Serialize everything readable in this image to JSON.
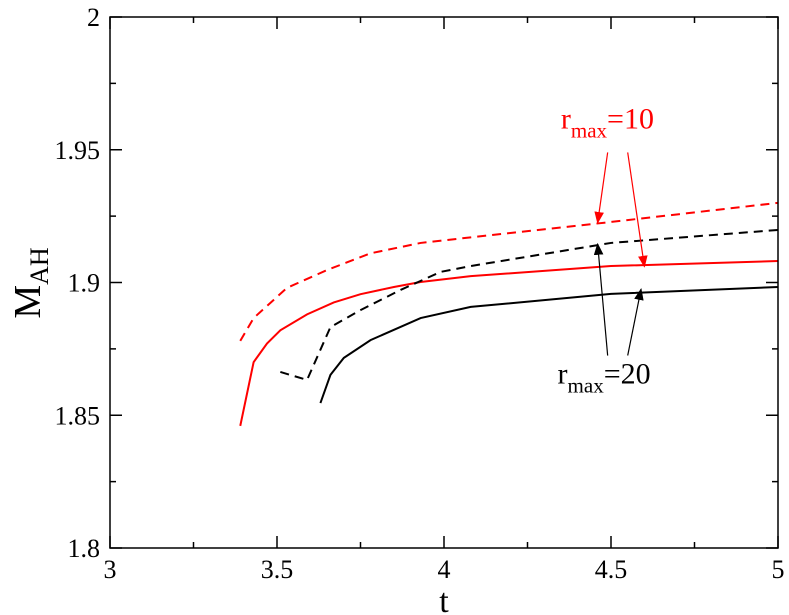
{
  "chart_data": {
    "type": "line",
    "title": "",
    "xlabel": "t",
    "ylabel_main": "M",
    "ylabel_sub": "AH",
    "xlim": [
      3,
      5
    ],
    "ylim": [
      1.8,
      2.0
    ],
    "xticks": [
      "3",
      "3.5",
      "4",
      "4.5",
      "5"
    ],
    "yticks": [
      "1.8",
      "1.85",
      "1.9",
      "1.95",
      "2"
    ],
    "xtick_values": [
      3,
      3.5,
      4,
      4.5,
      5
    ],
    "ytick_values": [
      1.8,
      1.85,
      1.9,
      1.95,
      2.0
    ],
    "grid": false,
    "series": [
      {
        "name": "r_max=10 solid",
        "color": "#ff0000",
        "dash": "solid",
        "x": [
          3.39,
          3.43,
          3.47,
          3.51,
          3.59,
          3.67,
          3.75,
          3.85,
          3.93,
          4.08,
          4.5,
          5.0
        ],
        "y": [
          1.846,
          1.87,
          1.877,
          1.882,
          1.888,
          1.8925,
          1.8956,
          1.8983,
          1.9002,
          1.9024,
          1.9062,
          1.9081
        ]
      },
      {
        "name": "r_max=10 dashed",
        "color": "#ff0000",
        "dash": "dashed",
        "x": [
          3.39,
          3.43,
          3.53,
          3.65,
          3.78,
          3.93,
          4.08,
          4.5,
          5.0
        ],
        "y": [
          1.878,
          1.8866,
          1.898,
          1.9047,
          1.911,
          1.9149,
          1.917,
          1.9228,
          1.93
        ]
      },
      {
        "name": "r_max=20 dashed",
        "color": "#000000",
        "dash": "dashed",
        "x": [
          3.51,
          3.59,
          3.66,
          3.75,
          3.87,
          3.99,
          4.08,
          4.5,
          5.0
        ],
        "y": [
          1.8663,
          1.8633,
          1.8832,
          1.8896,
          1.8972,
          1.904,
          1.9062,
          1.9149,
          1.9198
        ]
      },
      {
        "name": "r_max=20 solid",
        "color": "#000000",
        "dash": "solid",
        "x": [
          3.63,
          3.66,
          3.7,
          3.78,
          3.93,
          4.08,
          4.5,
          5.0
        ],
        "y": [
          1.8546,
          1.8652,
          1.8716,
          1.8783,
          1.8866,
          1.8908,
          1.8957,
          1.8983
        ]
      }
    ],
    "annotations": [
      {
        "text_main": "r",
        "text_sub": "max",
        "text_rest": "=10",
        "color": "#ff0000",
        "x": 4.35,
        "y": 1.958,
        "arrows_to": [
          [
            4.46,
            1.9225
          ],
          [
            4.6,
            1.906
          ]
        ],
        "arrows_from": [
          [
            4.49,
            1.949
          ],
          [
            4.55,
            1.949
          ]
        ]
      },
      {
        "text_main": "r",
        "text_sub": "max",
        "text_rest": "=20",
        "color": "#000000",
        "x": 4.34,
        "y": 1.862,
        "arrows_to": [
          [
            4.46,
            1.9145
          ],
          [
            4.59,
            1.8975
          ]
        ],
        "arrows_from": [
          [
            4.49,
            1.8725
          ],
          [
            4.55,
            1.8725
          ]
        ]
      }
    ]
  }
}
